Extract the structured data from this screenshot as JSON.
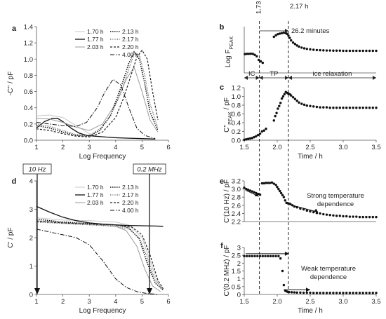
{
  "panel_labels": {
    "a": "a",
    "b": "b",
    "c": "c",
    "d": "d",
    "e": "e",
    "f": "f"
  },
  "legend_entries": [
    "1.70 h",
    "1.77 h",
    "2.03 h",
    "2.13 h",
    "2.17 h",
    "2.20 h",
    "4.00 h"
  ],
  "annotations": {
    "t173": "1.73 h",
    "t217": "2.17 h",
    "duration": "26.2 minutes",
    "ic": "IC",
    "tp": "TP",
    "ice": "ice relaxation",
    "hz10": "10 Hz",
    "mhz02": "0.2 MHz",
    "strong": "Strong temperature\ndependence",
    "weak": "Weak temperature\ndependence"
  },
  "chart_data": [
    {
      "id": "a",
      "type": "line",
      "xlabel": "Log Frequency",
      "ylabel": "-C'' / pF",
      "xlim": [
        1,
        6
      ],
      "ylim": [
        0,
        1.4
      ],
      "xticks": [
        1,
        2,
        3,
        4,
        5,
        6
      ],
      "yticks": [
        0,
        0.2,
        0.4,
        0.6,
        0.8,
        1.0,
        1.2,
        1.4
      ],
      "series": [
        {
          "name": "1.70 h",
          "x": [
            1,
            1.5,
            2,
            2.5,
            3,
            3.3,
            3.6,
            3.9,
            4.2,
            4.5,
            5,
            5.5
          ],
          "y": [
            0.3,
            0.31,
            0.28,
            0.18,
            0.08,
            0.05,
            0.04,
            0.035,
            0.03,
            0.025,
            0.02,
            0.015
          ]
        },
        {
          "name": "1.77 h",
          "x": [
            1,
            1.3,
            1.6,
            1.8,
            2,
            2.3,
            2.6,
            2.9,
            3.2,
            3.6,
            4,
            4.5,
            5,
            5.5
          ],
          "y": [
            0.15,
            0.23,
            0.27,
            0.27,
            0.23,
            0.15,
            0.09,
            0.06,
            0.05,
            0.04,
            0.03,
            0.025,
            0.02,
            0.015
          ]
        },
        {
          "name": "2.03 h",
          "x": [
            1,
            1.5,
            2,
            2.5,
            3,
            3.5,
            4,
            4.4,
            4.7,
            5,
            5.3,
            5.6
          ],
          "y": [
            0.27,
            0.26,
            0.22,
            0.16,
            0.12,
            0.2,
            0.45,
            0.75,
            0.9,
            0.6,
            0.25,
            0.1
          ]
        },
        {
          "name": "2.13 h",
          "x": [
            1,
            1.5,
            2,
            2.5,
            3,
            3.4,
            3.8,
            4.2,
            4.5,
            4.7,
            4.9,
            5.1,
            5.3,
            5.6
          ],
          "y": [
            0.18,
            0.15,
            0.1,
            0.06,
            0.05,
            0.12,
            0.3,
            0.65,
            0.95,
            1.09,
            1.0,
            0.7,
            0.35,
            0.12
          ]
        },
        {
          "name": "2.17 h",
          "x": [
            1,
            1.5,
            2,
            2.5,
            3,
            3.4,
            3.8,
            4.2,
            4.5,
            4.7,
            4.9,
            5.1,
            5.3,
            5.6
          ],
          "y": [
            0.2,
            0.17,
            0.12,
            0.07,
            0.06,
            0.14,
            0.3,
            0.58,
            0.88,
            1.06,
            1.05,
            0.8,
            0.45,
            0.15
          ]
        },
        {
          "name": "2.20 h",
          "x": [
            1,
            1.5,
            2,
            2.5,
            3,
            3.5,
            4,
            4.3,
            4.6,
            4.8,
            5,
            5.2,
            5.4,
            5.6
          ],
          "y": [
            0.14,
            0.12,
            0.08,
            0.05,
            0.04,
            0.1,
            0.28,
            0.52,
            0.82,
            1.02,
            1.11,
            1.0,
            0.6,
            0.25
          ]
        },
        {
          "name": "4.00 h",
          "x": [
            1,
            1.5,
            2,
            2.5,
            2.9,
            3.3,
            3.6,
            3.9,
            4.2,
            4.5,
            4.8,
            5.1,
            5.5
          ],
          "y": [
            0.22,
            0.2,
            0.18,
            0.17,
            0.22,
            0.4,
            0.6,
            0.75,
            0.68,
            0.4,
            0.15,
            0.06,
            0.02
          ]
        }
      ]
    },
    {
      "id": "b",
      "type": "scatter",
      "xlabel": "",
      "ylabel": "Log F_PEAK",
      "xlim": [
        1.5,
        3.5
      ],
      "x": [
        1.51,
        1.54,
        1.57,
        1.6,
        1.63,
        1.66,
        1.69,
        1.72,
        1.75,
        1.78,
        2.13,
        2.15,
        2.17,
        2.19,
        2.21,
        2.24,
        2.27,
        2.3,
        2.33,
        2.37,
        2.41,
        2.45,
        2.5,
        2.55,
        2.6,
        2.65,
        2.7,
        2.75,
        2.8,
        2.85,
        2.9,
        2.95,
        3.0,
        3.05,
        3.1,
        3.15,
        3.2,
        3.25,
        3.3,
        3.35,
        3.4,
        3.45,
        3.5
      ],
      "y": [
        3.7,
        3.72,
        3.72,
        3.73,
        3.72,
        3.65,
        3.55,
        3.3,
        3.2,
        3.1,
        5.15,
        5.1,
        4.98,
        4.82,
        4.65,
        4.5,
        4.4,
        4.3,
        4.22,
        4.15,
        4.1,
        4.06,
        4.03,
        4.0,
        3.98,
        3.97,
        3.96,
        3.95,
        3.95,
        3.94,
        3.94,
        3.94,
        3.93,
        3.93,
        3.93,
        3.93,
        3.93,
        3.93,
        3.93,
        3.93,
        3.93,
        3.93,
        3.93
      ],
      "cluster_x": [
        1.95,
        1.98,
        2.01,
        2.04,
        2.07,
        2.1
      ],
      "cluster_y": [
        4.9,
        5.0,
        5.08,
        5.12,
        5.15,
        5.18
      ],
      "ylim": [
        2.4,
        5.6
      ]
    },
    {
      "id": "c",
      "type": "scatter",
      "xlabel": "Time / h",
      "ylabel": "C''_PEAK / pF",
      "xlim": [
        1.5,
        3.5
      ],
      "ylim": [
        0,
        1.2
      ],
      "xticks": [
        1.5,
        2.0,
        2.5,
        3.0,
        3.5
      ],
      "yticks": [
        0,
        0.2,
        0.4,
        0.6,
        0.8,
        1.0,
        1.2
      ],
      "x": [
        1.5,
        1.53,
        1.56,
        1.59,
        1.62,
        1.65,
        1.68,
        1.71,
        1.74,
        1.77,
        1.8,
        1.83,
        1.95,
        1.97,
        1.99,
        2.01,
        2.03,
        2.05,
        2.07,
        2.09,
        2.11,
        2.13,
        2.15,
        2.17,
        2.19,
        2.21,
        2.24,
        2.27,
        2.3,
        2.33,
        2.37,
        2.41,
        2.45,
        2.5,
        2.55,
        2.6,
        2.65,
        2.7,
        2.75,
        2.8,
        2.85,
        2.9,
        2.95,
        3.0,
        3.05,
        3.1,
        3.15,
        3.2,
        3.25,
        3.3,
        3.35,
        3.4,
        3.45,
        3.5
      ],
      "y": [
        0.01,
        0.02,
        0.03,
        0.04,
        0.05,
        0.07,
        0.09,
        0.12,
        0.15,
        0.2,
        0.22,
        0.26,
        0.45,
        0.55,
        0.62,
        0.72,
        0.78,
        0.85,
        0.95,
        1.0,
        1.05,
        1.1,
        1.08,
        1.06,
        1.05,
        1.02,
        0.98,
        0.94,
        0.9,
        0.86,
        0.83,
        0.81,
        0.79,
        0.78,
        0.77,
        0.76,
        0.75,
        0.75,
        0.75,
        0.74,
        0.74,
        0.74,
        0.74,
        0.74,
        0.74,
        0.74,
        0.74,
        0.74,
        0.74,
        0.74,
        0.74,
        0.74,
        0.74,
        0.74
      ]
    },
    {
      "id": "d",
      "type": "line",
      "xlabel": "Log Frequency",
      "ylabel": "C' / pF",
      "xlim": [
        1,
        6
      ],
      "ylim": [
        0,
        4
      ],
      "xticks": [
        1,
        2,
        3,
        4,
        5,
        6
      ],
      "yticks": [
        0,
        1,
        2,
        3,
        4
      ],
      "series": [
        {
          "name": "1.70 h",
          "x": [
            1,
            2,
            3,
            4,
            4.5,
            5,
            5.3,
            5.6,
            5.8
          ],
          "y": [
            2.7,
            2.62,
            2.6,
            2.55,
            2.45,
            2.0,
            1.2,
            0.4,
            0.15
          ]
        },
        {
          "name": "1.77 h",
          "x": [
            1,
            1.5,
            2,
            2.5,
            3,
            3.5,
            4,
            4.5,
            5,
            5.5,
            5.8
          ],
          "y": [
            3.1,
            2.9,
            2.72,
            2.6,
            2.52,
            2.48,
            2.45,
            2.43,
            2.42,
            2.41,
            2.4
          ]
        },
        {
          "name": "2.03 h",
          "x": [
            1,
            2,
            3,
            4,
            4.4,
            4.8,
            5.1,
            5.4,
            5.7
          ],
          "y": [
            2.6,
            2.52,
            2.48,
            2.4,
            2.25,
            1.7,
            0.9,
            0.3,
            0.1
          ]
        },
        {
          "name": "2.13 h",
          "x": [
            1,
            2,
            3,
            4,
            4.5,
            4.9,
            5.2,
            5.5,
            5.8
          ],
          "y": [
            2.65,
            2.55,
            2.5,
            2.45,
            2.35,
            1.95,
            1.1,
            0.4,
            0.15
          ]
        },
        {
          "name": "2.17 h",
          "x": [
            1,
            2,
            3,
            4,
            4.5,
            4.9,
            5.2,
            5.5,
            5.8
          ],
          "y": [
            2.55,
            2.5,
            2.45,
            2.4,
            2.3,
            2.0,
            1.3,
            0.5,
            0.2
          ]
        },
        {
          "name": "2.20 h",
          "x": [
            1,
            2,
            3,
            4,
            4.6,
            5,
            5.3,
            5.6,
            5.8
          ],
          "y": [
            2.58,
            2.52,
            2.48,
            2.45,
            2.38,
            2.1,
            1.4,
            0.5,
            0.2
          ]
        },
        {
          "name": "4.00 h",
          "x": [
            1,
            2,
            2.5,
            3,
            3.5,
            4,
            4.4,
            4.8,
            5.2,
            5.6
          ],
          "y": [
            2.3,
            2.1,
            2.0,
            1.75,
            1.2,
            0.55,
            0.25,
            0.1,
            0.03,
            0.01
          ]
        }
      ]
    },
    {
      "id": "e",
      "type": "scatter",
      "xlabel": "",
      "ylabel": "C'(10 Hz) / pF",
      "xlim": [
        1.5,
        3.5
      ],
      "ylim": [
        2.2,
        3.2
      ],
      "yticks": [
        2.2,
        2.4,
        2.6,
        2.8,
        3.0,
        3.2
      ],
      "x": [
        1.5,
        1.53,
        1.56,
        1.59,
        1.62,
        1.65,
        1.68,
        1.71,
        1.74,
        1.77,
        1.8,
        1.83,
        1.86,
        1.89,
        1.92,
        1.95,
        1.98,
        2.0,
        2.02,
        2.04,
        2.06,
        2.08,
        2.1,
        2.12,
        2.14,
        2.16,
        2.18,
        2.2,
        2.23,
        2.26,
        2.3,
        2.35,
        2.4,
        2.45,
        2.5,
        2.55,
        2.6,
        2.65,
        2.7,
        2.75,
        2.8,
        2.85,
        2.9,
        2.95,
        3.0,
        3.05,
        3.1,
        3.15,
        3.2,
        3.25,
        3.3,
        3.35,
        3.4,
        3.45,
        3.5
      ],
      "y": [
        3.03,
        3.0,
        2.98,
        2.96,
        2.94,
        2.92,
        2.9,
        2.88,
        2.86,
        3.14,
        3.14,
        3.15,
        3.15,
        3.15,
        3.16,
        3.13,
        3.1,
        3.05,
        3.0,
        2.95,
        2.9,
        2.85,
        2.8,
        2.72,
        2.66,
        2.65,
        2.64,
        2.63,
        2.6,
        2.57,
        2.55,
        2.52,
        2.5,
        2.47,
        2.45,
        2.43,
        2.41,
        2.4,
        2.38,
        2.37,
        2.36,
        2.35,
        2.34,
        2.34,
        2.33,
        2.33,
        2.32,
        2.32,
        2.32,
        2.31,
        2.31,
        2.31,
        2.31,
        2.31,
        2.31
      ]
    },
    {
      "id": "f",
      "type": "scatter",
      "xlabel": "Time / h",
      "ylabel": "C'(0.2 MHz) / pF",
      "xlim": [
        1.5,
        3.5
      ],
      "ylim": [
        0,
        3
      ],
      "xticks": [
        1.5,
        2.0,
        2.5,
        3.0,
        3.5
      ],
      "yticks": [
        0,
        0.5,
        1,
        1.5,
        2,
        2.5,
        3
      ],
      "x": [
        1.5,
        1.54,
        1.58,
        1.62,
        1.66,
        1.7,
        1.74,
        1.78,
        1.82,
        1.86,
        1.9,
        1.94,
        1.98,
        2.02,
        2.05,
        2.08,
        2.1,
        2.12,
        2.14,
        2.16,
        2.18,
        2.22,
        2.26,
        2.3,
        2.35,
        2.4,
        2.45,
        2.5,
        2.55,
        2.6,
        2.65,
        2.7,
        2.75,
        2.8,
        2.85,
        2.9,
        2.95,
        3.0,
        3.05,
        3.1,
        3.15,
        3.2,
        3.25,
        3.3,
        3.35,
        3.4,
        3.45,
        3.5
      ],
      "y": [
        2.45,
        2.45,
        2.45,
        2.45,
        2.45,
        2.45,
        2.45,
        2.45,
        2.45,
        2.45,
        2.45,
        2.45,
        2.45,
        2.45,
        2.3,
        1.5,
        0.6,
        0.25,
        0.2,
        0.17,
        0.15,
        0.14,
        0.13,
        0.12,
        0.12,
        0.11,
        0.11,
        0.11,
        0.1,
        0.1,
        0.1,
        0.1,
        0.1,
        0.1,
        0.1,
        0.1,
        0.1,
        0.1,
        0.1,
        0.1,
        0.1,
        0.1,
        0.1,
        0.1,
        0.1,
        0.1,
        0.1,
        0.1
      ]
    }
  ]
}
